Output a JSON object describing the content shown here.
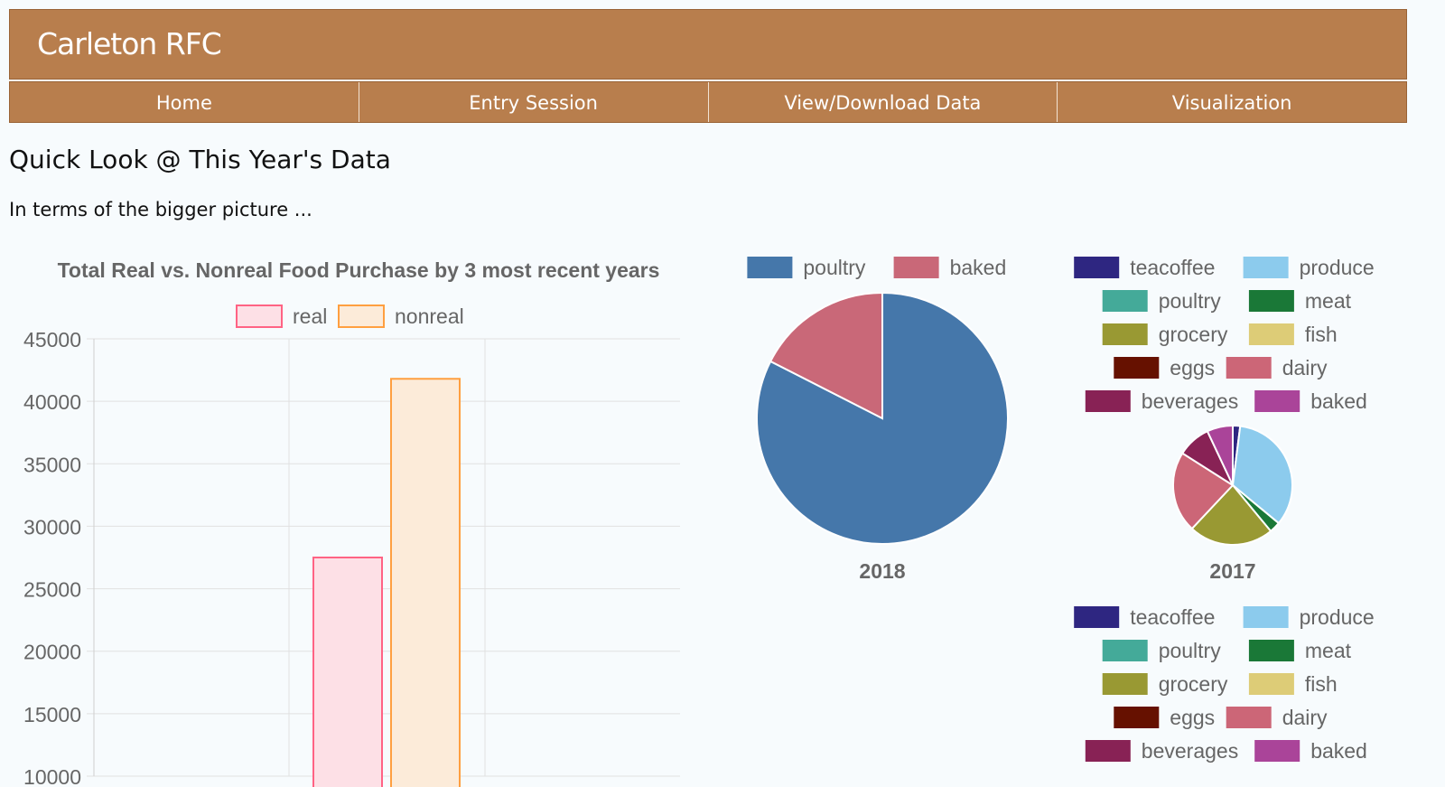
{
  "app": {
    "brand": "Carleton RFC"
  },
  "nav": {
    "items": [
      {
        "label": "Home"
      },
      {
        "label": "Entry Session"
      },
      {
        "label": "View/Download Data"
      },
      {
        "label": "Visualization"
      }
    ]
  },
  "main": {
    "heading": "Quick Look @ This Year's Data",
    "subheading": "In terms of the bigger picture ..."
  },
  "chart_data": [
    {
      "type": "bar",
      "title": "Total Real vs. Nonreal Food Purchase by 3 most recent years",
      "legend": {
        "placement": "top",
        "items": [
          "real",
          "nonreal"
        ]
      },
      "y_ticks": [
        45000,
        40000,
        35000,
        30000,
        25000,
        20000,
        15000,
        10000
      ],
      "ylim": [
        10000,
        45000
      ],
      "grid": true,
      "series": [
        {
          "name": "real",
          "values": [
            27500
          ],
          "color": "#ff6384",
          "fill": "#fde0e6"
        },
        {
          "name": "nonreal",
          "values": [
            41800
          ],
          "color": "#ff9f40",
          "fill": "#fcebd9"
        }
      ]
    },
    {
      "type": "pie",
      "title": "2018",
      "legend": {
        "placement": "top"
      },
      "slices": [
        {
          "label": "poultry",
          "value": 82.5,
          "color": "#4577aa"
        },
        {
          "label": "baked",
          "value": 17.5,
          "color": "#c96878"
        }
      ]
    },
    {
      "type": "pie",
      "title": "2017",
      "legend": {
        "placement": "top"
      },
      "slices": [
        {
          "label": "teacoffee",
          "value": 2,
          "color": "#2e2681"
        },
        {
          "label": "produce",
          "value": 34,
          "color": "#8ccbed"
        },
        {
          "label": "poultry",
          "value": 0,
          "color": "#44aa99"
        },
        {
          "label": "meat",
          "value": 3,
          "color": "#1a7837"
        },
        {
          "label": "grocery",
          "value": 23,
          "color": "#999933"
        },
        {
          "label": "fish",
          "value": 0,
          "color": "#ddcc77"
        },
        {
          "label": "eggs",
          "value": 0,
          "color": "#661100"
        },
        {
          "label": "dairy",
          "value": 22,
          "color": "#cc6677"
        },
        {
          "label": "beverages",
          "value": 9,
          "color": "#882255"
        },
        {
          "label": "baked",
          "value": 7,
          "color": "#aa4499"
        }
      ]
    }
  ],
  "second_legend": {
    "items": [
      "teacoffee",
      "produce",
      "poultry",
      "meat",
      "grocery",
      "fish",
      "eggs",
      "dairy",
      "beverages",
      "baked"
    ]
  }
}
